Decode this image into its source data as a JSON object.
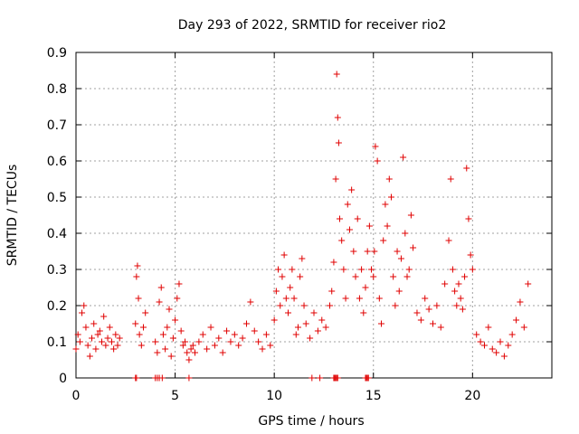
{
  "chart_data": {
    "type": "scatter",
    "title": "Day 293 of 2022, SRMTID for receiver rio2",
    "xlabel": "GPS time / hours",
    "ylabel": "SRMTID / TECUs",
    "xlim": [
      0,
      24
    ],
    "ylim": [
      0,
      0.9
    ],
    "xticks": [
      0,
      5,
      10,
      15,
      20
    ],
    "xtick_labels": [
      "0",
      "5",
      "10",
      "15",
      "20"
    ],
    "yticks": [
      0,
      0.1,
      0.2,
      0.3,
      0.4,
      0.5,
      0.6,
      0.7,
      0.8,
      0.9
    ],
    "ytick_labels": [
      "0",
      "0.1",
      "0.2",
      "0.3",
      "0.4",
      "0.5",
      "0.6",
      "0.7",
      "0.8",
      "0.9"
    ],
    "grid": true,
    "marker": "+",
    "color": "#e00000",
    "series": [
      {
        "name": "rio2",
        "x": [
          0.0,
          0.1,
          0.2,
          0.3,
          0.4,
          0.5,
          0.6,
          0.7,
          0.8,
          0.9,
          1.0,
          1.1,
          1.2,
          1.3,
          1.4,
          1.5,
          1.6,
          1.7,
          1.8,
          1.9,
          2.0,
          2.1,
          2.2,
          3.0,
          3.05,
          3.1,
          3.15,
          3.2,
          3.3,
          3.4,
          3.5,
          4.0,
          4.1,
          4.2,
          4.3,
          4.4,
          4.5,
          4.6,
          4.7,
          4.8,
          4.9,
          5.0,
          5.1,
          5.2,
          5.3,
          5.4,
          5.5,
          5.6,
          5.7,
          5.8,
          5.9,
          6.0,
          6.2,
          6.4,
          6.6,
          6.8,
          7.0,
          7.2,
          7.4,
          7.6,
          7.8,
          8.0,
          8.2,
          8.4,
          8.6,
          8.8,
          9.0,
          9.2,
          9.4,
          9.6,
          9.8,
          10.0,
          10.1,
          10.2,
          10.3,
          10.4,
          10.5,
          10.6,
          10.7,
          10.8,
          10.9,
          11.0,
          11.1,
          11.2,
          11.3,
          11.4,
          11.5,
          11.6,
          11.8,
          12.0,
          12.2,
          12.4,
          12.6,
          12.8,
          12.9,
          13.0,
          13.1,
          13.15,
          13.2,
          13.25,
          13.3,
          13.4,
          13.5,
          13.6,
          13.7,
          13.8,
          13.9,
          14.0,
          14.1,
          14.2,
          14.3,
          14.4,
          14.5,
          14.6,
          14.7,
          14.8,
          14.9,
          15.0,
          15.05,
          15.1,
          15.2,
          15.3,
          15.4,
          15.5,
          15.6,
          15.7,
          15.8,
          15.9,
          16.0,
          16.1,
          16.2,
          16.3,
          16.4,
          16.5,
          16.6,
          16.7,
          16.8,
          16.9,
          17.0,
          17.2,
          17.4,
          17.6,
          17.8,
          18.0,
          18.2,
          18.4,
          18.6,
          18.8,
          18.9,
          19.0,
          19.1,
          19.2,
          19.3,
          19.4,
          19.5,
          19.6,
          19.7,
          19.8,
          19.9,
          20.0,
          20.2,
          20.4,
          20.6,
          20.8,
          21.0,
          21.2,
          21.4,
          21.6,
          21.8,
          22.0,
          22.2,
          22.4,
          22.6,
          22.8
        ],
        "y": [
          0.08,
          0.12,
          0.1,
          0.18,
          0.2,
          0.14,
          0.09,
          0.06,
          0.11,
          0.15,
          0.08,
          0.12,
          0.13,
          0.1,
          0.17,
          0.09,
          0.11,
          0.14,
          0.1,
          0.08,
          0.12,
          0.09,
          0.11,
          0.15,
          0.28,
          0.31,
          0.22,
          0.12,
          0.09,
          0.14,
          0.18,
          0.1,
          0.07,
          0.21,
          0.25,
          0.12,
          0.08,
          0.14,
          0.19,
          0.06,
          0.11,
          0.16,
          0.22,
          0.26,
          0.13,
          0.09,
          0.1,
          0.07,
          0.05,
          0.08,
          0.09,
          0.07,
          0.1,
          0.12,
          0.08,
          0.14,
          0.09,
          0.11,
          0.07,
          0.13,
          0.1,
          0.12,
          0.09,
          0.11,
          0.15,
          0.21,
          0.13,
          0.1,
          0.08,
          0.12,
          0.09,
          0.16,
          0.24,
          0.3,
          0.2,
          0.28,
          0.34,
          0.22,
          0.18,
          0.25,
          0.3,
          0.22,
          0.12,
          0.14,
          0.28,
          0.33,
          0.2,
          0.15,
          0.11,
          0.18,
          0.13,
          0.16,
          0.14,
          0.2,
          0.24,
          0.32,
          0.55,
          0.84,
          0.72,
          0.65,
          0.44,
          0.38,
          0.3,
          0.22,
          0.48,
          0.41,
          0.52,
          0.35,
          0.28,
          0.44,
          0.22,
          0.3,
          0.18,
          0.25,
          0.35,
          0.42,
          0.3,
          0.28,
          0.35,
          0.64,
          0.6,
          0.22,
          0.15,
          0.38,
          0.48,
          0.42,
          0.55,
          0.5,
          0.28,
          0.2,
          0.35,
          0.24,
          0.33,
          0.61,
          0.4,
          0.28,
          0.3,
          0.45,
          0.36,
          0.18,
          0.16,
          0.22,
          0.19,
          0.15,
          0.2,
          0.14,
          0.26,
          0.38,
          0.55,
          0.3,
          0.24,
          0.2,
          0.26,
          0.22,
          0.19,
          0.28,
          0.58,
          0.44,
          0.34,
          0.3,
          0.12,
          0.1,
          0.09,
          0.14,
          0.08,
          0.07,
          0.1,
          0.06,
          0.09,
          0.12,
          0.16,
          0.21,
          0.14,
          0.26
        ],
        "zero_x": [
          3.0,
          3.05,
          4.0,
          4.1,
          4.2,
          4.35,
          5.7,
          11.9,
          12.3,
          13.0,
          13.05,
          13.1,
          13.15,
          13.2,
          14.6,
          14.65,
          14.7,
          14.75
        ]
      }
    ]
  }
}
